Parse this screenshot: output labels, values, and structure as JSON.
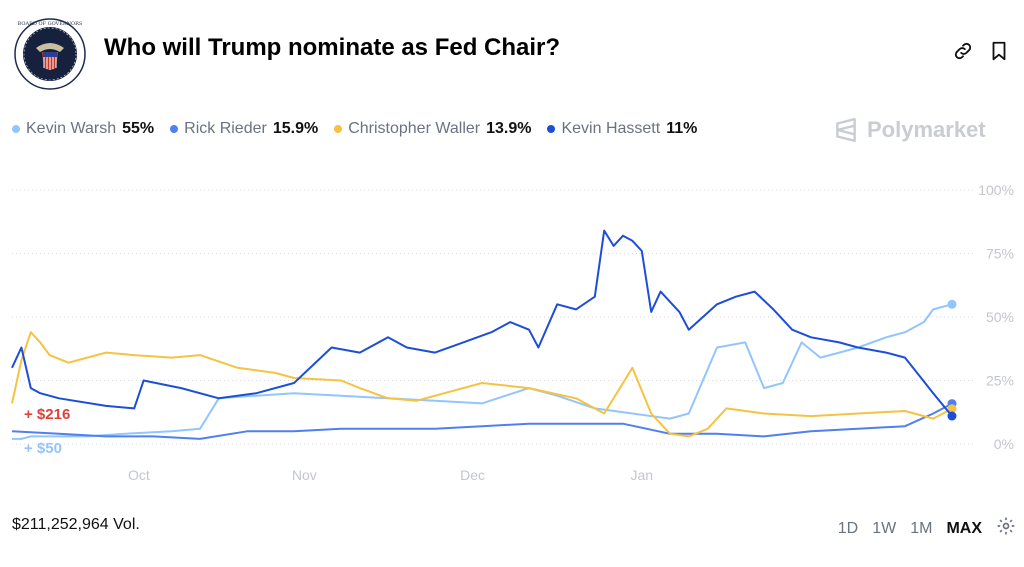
{
  "header": {
    "title": "Who will Trump nominate as Fed Chair?",
    "logo_alt": "BOARD OF GOVERNORS OF THE FEDERAL RESERVE SYSTEM",
    "link_icon": "link-icon",
    "bookmark_icon": "bookmark-icon"
  },
  "legend": [
    {
      "name": "Kevin Warsh",
      "value": "55%",
      "color": "#93c5fd"
    },
    {
      "name": "Rick Rieder",
      "value": "15.9%",
      "color": "#4f7ff0"
    },
    {
      "name": "Christopher Waller",
      "value": "13.9%",
      "color": "#f5c242"
    },
    {
      "name": "Kevin Hassett",
      "value": "11%",
      "color": "#1d4ed8"
    }
  ],
  "brand": "Polymarket",
  "footer": {
    "volume": "$211,252,964 Vol.",
    "ranges": [
      "1D",
      "1W",
      "1M",
      "MAX"
    ],
    "active_range": "MAX",
    "settings_icon": "gear-icon"
  },
  "chart_data": {
    "type": "line",
    "x_tick_labels": [
      "Oct",
      "Nov",
      "Dec",
      "Jan"
    ],
    "x_tick_positions": [
      0.135,
      0.311,
      0.49,
      0.67
    ],
    "ylim": [
      0,
      100
    ],
    "y_ticks": [
      0,
      25,
      50,
      75,
      100
    ],
    "y_tick_labels": [
      "0%",
      "25%",
      "50%",
      "75%",
      "100%"
    ],
    "grid": true,
    "annotations": [
      {
        "text": "+ $216",
        "color": "#e0403a"
      },
      {
        "text": "+ $50",
        "color": "#93c5fd"
      }
    ],
    "series": [
      {
        "name": "Kevin Warsh",
        "color": "#93c5fd",
        "x": [
          0,
          0.01,
          0.02,
          0.05,
          0.08,
          0.12,
          0.17,
          0.2,
          0.22,
          0.26,
          0.3,
          0.35,
          0.4,
          0.45,
          0.5,
          0.55,
          0.58,
          0.62,
          0.66,
          0.7,
          0.72,
          0.75,
          0.78,
          0.8,
          0.82,
          0.84,
          0.86,
          0.88,
          0.9,
          0.93,
          0.95,
          0.97,
          0.98,
          1.0
        ],
        "y": [
          2,
          2,
          3,
          3,
          3,
          4,
          5,
          6,
          18,
          19,
          20,
          19,
          18,
          17,
          16,
          22,
          19,
          14,
          12,
          10,
          12,
          38,
          40,
          22,
          24,
          40,
          34,
          36,
          38,
          42,
          44,
          48,
          53,
          55
        ]
      },
      {
        "name": "Rick Rieder",
        "color": "#4f7ff0",
        "x": [
          0,
          0.05,
          0.1,
          0.15,
          0.2,
          0.25,
          0.3,
          0.35,
          0.4,
          0.45,
          0.5,
          0.55,
          0.6,
          0.65,
          0.7,
          0.75,
          0.8,
          0.85,
          0.9,
          0.95,
          0.98,
          1.0
        ],
        "y": [
          5,
          4,
          3,
          3,
          2,
          5,
          5,
          6,
          6,
          6,
          7,
          8,
          8,
          8,
          4,
          4,
          3,
          5,
          6,
          7,
          12,
          15.9
        ]
      },
      {
        "name": "Christopher Waller",
        "color": "#f5c242",
        "x": [
          0,
          0.01,
          0.02,
          0.03,
          0.04,
          0.06,
          0.1,
          0.13,
          0.17,
          0.2,
          0.24,
          0.28,
          0.3,
          0.35,
          0.37,
          0.4,
          0.43,
          0.46,
          0.5,
          0.55,
          0.6,
          0.63,
          0.66,
          0.68,
          0.7,
          0.72,
          0.74,
          0.76,
          0.8,
          0.85,
          0.9,
          0.95,
          0.98,
          1.0
        ],
        "y": [
          16,
          33,
          44,
          40,
          35,
          32,
          36,
          35,
          34,
          35,
          30,
          28,
          26,
          25,
          22,
          18,
          17,
          20,
          24,
          22,
          18,
          12,
          30,
          12,
          4,
          3,
          6,
          14,
          12,
          11,
          12,
          13,
          10,
          13.9
        ]
      },
      {
        "name": "Kevin Hassett",
        "color": "#1d4ed8",
        "x": [
          0,
          0.01,
          0.02,
          0.03,
          0.05,
          0.1,
          0.13,
          0.14,
          0.18,
          0.22,
          0.26,
          0.3,
          0.34,
          0.37,
          0.4,
          0.42,
          0.45,
          0.48,
          0.51,
          0.53,
          0.55,
          0.56,
          0.58,
          0.6,
          0.62,
          0.63,
          0.64,
          0.65,
          0.66,
          0.67,
          0.68,
          0.69,
          0.7,
          0.71,
          0.72,
          0.75,
          0.77,
          0.79,
          0.81,
          0.83,
          0.85,
          0.88,
          0.9,
          0.93,
          0.95,
          0.98,
          1.0
        ],
        "y": [
          30,
          38,
          22,
          20,
          18,
          15,
          14,
          25,
          22,
          18,
          20,
          24,
          38,
          36,
          42,
          38,
          36,
          40,
          44,
          48,
          45,
          38,
          55,
          53,
          58,
          84,
          78,
          82,
          80,
          76,
          52,
          60,
          56,
          52,
          45,
          55,
          58,
          60,
          53,
          45,
          42,
          40,
          38,
          36,
          34,
          20,
          11
        ]
      }
    ]
  }
}
